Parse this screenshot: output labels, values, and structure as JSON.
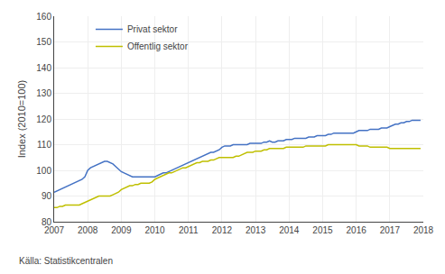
{
  "chart_data": {
    "type": "line",
    "ylabel": "Index (2010=100)",
    "annotations": [
      "Källa: Statistikcentralen"
    ],
    "xlim": [
      2007.0,
      2018.0
    ],
    "xticks": [
      2007,
      2008,
      2009,
      2010,
      2011,
      2012,
      2013,
      2014,
      2015,
      2016,
      2017,
      2018
    ],
    "ylim": [
      80,
      160
    ],
    "yticks": [
      80,
      90,
      100,
      110,
      120,
      130,
      140,
      150,
      160
    ],
    "grid": true,
    "legend": "upper left",
    "x": [
      2007.0,
      2007.083,
      2007.167,
      2007.25,
      2007.333,
      2007.417,
      2007.5,
      2007.583,
      2007.667,
      2007.75,
      2007.833,
      2007.917,
      2008.0,
      2008.083,
      2008.167,
      2008.25,
      2008.333,
      2008.417,
      2008.5,
      2008.583,
      2008.667,
      2008.75,
      2008.833,
      2008.917,
      2009.0,
      2009.083,
      2009.167,
      2009.25,
      2009.333,
      2009.417,
      2009.5,
      2009.583,
      2009.667,
      2009.75,
      2009.833,
      2009.917,
      2010.0,
      2010.083,
      2010.167,
      2010.25,
      2010.333,
      2010.417,
      2010.5,
      2010.583,
      2010.667,
      2010.75,
      2010.833,
      2010.917,
      2011.0,
      2011.083,
      2011.167,
      2011.25,
      2011.333,
      2011.417,
      2011.5,
      2011.583,
      2011.667,
      2011.75,
      2011.833,
      2011.917,
      2012.0,
      2012.083,
      2012.167,
      2012.25,
      2012.333,
      2012.417,
      2012.5,
      2012.583,
      2012.667,
      2012.75,
      2012.833,
      2012.917,
      2013.0,
      2013.083,
      2013.167,
      2013.25,
      2013.333,
      2013.417,
      2013.5,
      2013.583,
      2013.667,
      2013.75,
      2013.833,
      2013.917,
      2014.0,
      2014.083,
      2014.167,
      2014.25,
      2014.333,
      2014.417,
      2014.5,
      2014.583,
      2014.667,
      2014.75,
      2014.833,
      2014.917,
      2015.0,
      2015.083,
      2015.167,
      2015.25,
      2015.333,
      2015.417,
      2015.5,
      2015.583,
      2015.667,
      2015.75,
      2015.833,
      2015.917,
      2016.0,
      2016.083,
      2016.167,
      2016.25,
      2016.333,
      2016.417,
      2016.5,
      2016.583,
      2016.667,
      2016.75,
      2016.833,
      2016.917,
      2017.0,
      2017.083,
      2017.167,
      2017.25,
      2017.333,
      2017.417,
      2017.5,
      2017.583,
      2017.667,
      2017.75,
      2017.833,
      2017.917
    ],
    "series": [
      {
        "name": "Privat sektor",
        "color": "#4472c4",
        "values": [
          91.5,
          92.0,
          92.5,
          93.0,
          93.5,
          94.0,
          94.5,
          95.0,
          95.5,
          96.0,
          96.5,
          97.5,
          100.0,
          101.0,
          101.5,
          102.0,
          102.5,
          103.0,
          103.5,
          103.5,
          103.0,
          102.5,
          101.5,
          100.5,
          99.5,
          99.0,
          98.5,
          98.0,
          97.5,
          97.5,
          97.5,
          97.5,
          97.5,
          97.5,
          97.5,
          97.5,
          97.5,
          98.0,
          98.5,
          99.0,
          99.0,
          99.5,
          100.0,
          100.5,
          101.0,
          101.5,
          102.0,
          102.5,
          103.0,
          103.5,
          104.0,
          104.5,
          105.0,
          105.5,
          106.0,
          106.5,
          107.0,
          107.0,
          107.5,
          108.0,
          109.0,
          109.5,
          109.5,
          109.5,
          110.0,
          110.0,
          110.0,
          110.0,
          110.0,
          110.0,
          110.5,
          110.5,
          110.5,
          110.5,
          110.5,
          111.0,
          111.0,
          111.5,
          111.0,
          111.0,
          111.5,
          111.5,
          111.5,
          112.0,
          112.0,
          112.0,
          112.5,
          112.5,
          112.5,
          112.5,
          112.5,
          113.0,
          113.0,
          113.0,
          113.5,
          113.5,
          113.5,
          113.5,
          114.0,
          114.0,
          114.5,
          114.5,
          114.5,
          114.5,
          114.5,
          114.5,
          114.5,
          114.5,
          115.0,
          115.5,
          115.5,
          115.5,
          115.5,
          116.0,
          116.0,
          116.0,
          116.0,
          116.5,
          116.5,
          116.5,
          117.0,
          117.5,
          118.0,
          118.0,
          118.5,
          118.5,
          119.0,
          119.0,
          119.5,
          119.5,
          119.5,
          119.5
        ]
      },
      {
        "name": "Offentlig sektor",
        "color": "#bfbf00",
        "values": [
          85.5,
          85.5,
          86.0,
          86.0,
          86.5,
          86.5,
          86.5,
          86.5,
          86.5,
          86.5,
          87.0,
          87.5,
          88.0,
          88.5,
          89.0,
          89.5,
          90.0,
          90.0,
          90.0,
          90.0,
          90.0,
          90.5,
          91.0,
          91.5,
          92.5,
          93.0,
          93.5,
          94.0,
          94.0,
          94.5,
          94.5,
          95.0,
          95.0,
          95.0,
          95.0,
          95.5,
          96.5,
          97.0,
          97.5,
          98.0,
          98.5,
          99.0,
          99.0,
          99.5,
          100.0,
          100.5,
          101.0,
          101.0,
          101.5,
          102.0,
          102.5,
          103.0,
          103.0,
          103.5,
          103.5,
          103.5,
          104.0,
          104.0,
          104.5,
          105.0,
          105.0,
          105.0,
          105.0,
          105.0,
          105.0,
          105.5,
          105.5,
          106.0,
          106.5,
          107.0,
          107.0,
          107.0,
          107.5,
          107.5,
          107.5,
          108.0,
          108.0,
          108.5,
          108.5,
          108.5,
          108.5,
          108.5,
          108.5,
          109.0,
          109.0,
          109.0,
          109.0,
          109.0,
          109.0,
          109.0,
          109.5,
          109.5,
          109.5,
          109.5,
          109.5,
          109.5,
          109.5,
          109.5,
          110.0,
          110.0,
          110.0,
          110.0,
          110.0,
          110.0,
          110.0,
          110.0,
          110.0,
          110.0,
          110.0,
          109.5,
          109.5,
          109.5,
          109.5,
          109.0,
          109.0,
          109.0,
          109.0,
          109.0,
          109.0,
          109.0,
          108.5,
          108.5,
          108.5,
          108.5,
          108.5,
          108.5,
          108.5,
          108.5,
          108.5,
          108.5,
          108.5,
          108.5
        ]
      }
    ]
  }
}
